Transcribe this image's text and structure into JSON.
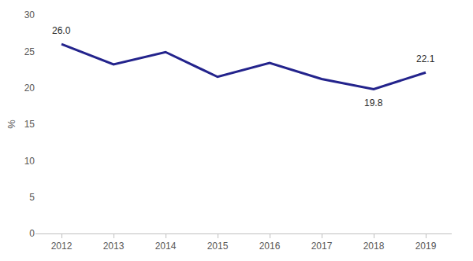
{
  "chart_data": {
    "type": "line",
    "y_label": "%",
    "categories": [
      "2012",
      "2013",
      "2014",
      "2015",
      "2016",
      "2017",
      "2018",
      "2019"
    ],
    "values": [
      26.0,
      23.2,
      24.9,
      21.5,
      23.4,
      21.2,
      19.8,
      22.1
    ],
    "value_labels": [
      "26.0",
      null,
      null,
      null,
      null,
      null,
      "19.8",
      "22.1"
    ],
    "data_labels": true,
    "color": "#23238c",
    "ylim": [
      0,
      30
    ],
    "yticks": [
      0,
      5,
      10,
      15,
      20,
      25,
      30
    ],
    "grid": false
  }
}
